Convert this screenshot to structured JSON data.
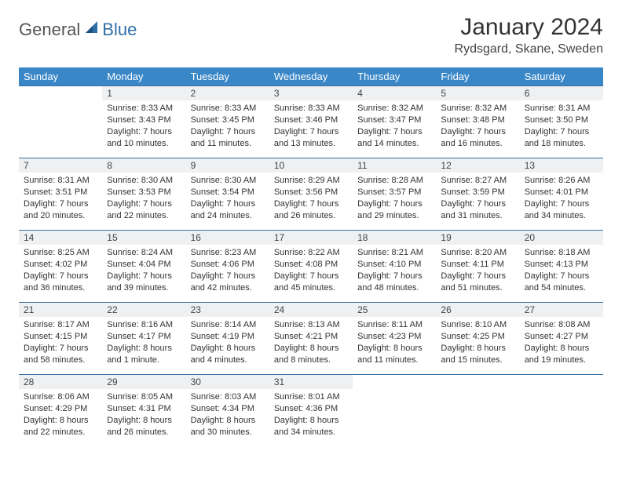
{
  "logo": {
    "general": "General",
    "blue": "Blue"
  },
  "title": "January 2024",
  "location": "Rydsgard, Skane, Sweden",
  "colors": {
    "header_bg": "#3a87c8",
    "header_text": "#ffffff",
    "daynum_bg": "#eef0f2",
    "border": "#3a6fa0",
    "logo_blue": "#2f6fa7",
    "logo_gray": "#555555",
    "body_text": "#333333"
  },
  "weekdays": [
    "Sunday",
    "Monday",
    "Tuesday",
    "Wednesday",
    "Thursday",
    "Friday",
    "Saturday"
  ],
  "weeks": [
    [
      {
        "n": "",
        "sunrise": "",
        "sunset": "",
        "daylight": ""
      },
      {
        "n": "1",
        "sunrise": "Sunrise: 8:33 AM",
        "sunset": "Sunset: 3:43 PM",
        "daylight": "Daylight: 7 hours and 10 minutes."
      },
      {
        "n": "2",
        "sunrise": "Sunrise: 8:33 AM",
        "sunset": "Sunset: 3:45 PM",
        "daylight": "Daylight: 7 hours and 11 minutes."
      },
      {
        "n": "3",
        "sunrise": "Sunrise: 8:33 AM",
        "sunset": "Sunset: 3:46 PM",
        "daylight": "Daylight: 7 hours and 13 minutes."
      },
      {
        "n": "4",
        "sunrise": "Sunrise: 8:32 AM",
        "sunset": "Sunset: 3:47 PM",
        "daylight": "Daylight: 7 hours and 14 minutes."
      },
      {
        "n": "5",
        "sunrise": "Sunrise: 8:32 AM",
        "sunset": "Sunset: 3:48 PM",
        "daylight": "Daylight: 7 hours and 16 minutes."
      },
      {
        "n": "6",
        "sunrise": "Sunrise: 8:31 AM",
        "sunset": "Sunset: 3:50 PM",
        "daylight": "Daylight: 7 hours and 18 minutes."
      }
    ],
    [
      {
        "n": "7",
        "sunrise": "Sunrise: 8:31 AM",
        "sunset": "Sunset: 3:51 PM",
        "daylight": "Daylight: 7 hours and 20 minutes."
      },
      {
        "n": "8",
        "sunrise": "Sunrise: 8:30 AM",
        "sunset": "Sunset: 3:53 PM",
        "daylight": "Daylight: 7 hours and 22 minutes."
      },
      {
        "n": "9",
        "sunrise": "Sunrise: 8:30 AM",
        "sunset": "Sunset: 3:54 PM",
        "daylight": "Daylight: 7 hours and 24 minutes."
      },
      {
        "n": "10",
        "sunrise": "Sunrise: 8:29 AM",
        "sunset": "Sunset: 3:56 PM",
        "daylight": "Daylight: 7 hours and 26 minutes."
      },
      {
        "n": "11",
        "sunrise": "Sunrise: 8:28 AM",
        "sunset": "Sunset: 3:57 PM",
        "daylight": "Daylight: 7 hours and 29 minutes."
      },
      {
        "n": "12",
        "sunrise": "Sunrise: 8:27 AM",
        "sunset": "Sunset: 3:59 PM",
        "daylight": "Daylight: 7 hours and 31 minutes."
      },
      {
        "n": "13",
        "sunrise": "Sunrise: 8:26 AM",
        "sunset": "Sunset: 4:01 PM",
        "daylight": "Daylight: 7 hours and 34 minutes."
      }
    ],
    [
      {
        "n": "14",
        "sunrise": "Sunrise: 8:25 AM",
        "sunset": "Sunset: 4:02 PM",
        "daylight": "Daylight: 7 hours and 36 minutes."
      },
      {
        "n": "15",
        "sunrise": "Sunrise: 8:24 AM",
        "sunset": "Sunset: 4:04 PM",
        "daylight": "Daylight: 7 hours and 39 minutes."
      },
      {
        "n": "16",
        "sunrise": "Sunrise: 8:23 AM",
        "sunset": "Sunset: 4:06 PM",
        "daylight": "Daylight: 7 hours and 42 minutes."
      },
      {
        "n": "17",
        "sunrise": "Sunrise: 8:22 AM",
        "sunset": "Sunset: 4:08 PM",
        "daylight": "Daylight: 7 hours and 45 minutes."
      },
      {
        "n": "18",
        "sunrise": "Sunrise: 8:21 AM",
        "sunset": "Sunset: 4:10 PM",
        "daylight": "Daylight: 7 hours and 48 minutes."
      },
      {
        "n": "19",
        "sunrise": "Sunrise: 8:20 AM",
        "sunset": "Sunset: 4:11 PM",
        "daylight": "Daylight: 7 hours and 51 minutes."
      },
      {
        "n": "20",
        "sunrise": "Sunrise: 8:18 AM",
        "sunset": "Sunset: 4:13 PM",
        "daylight": "Daylight: 7 hours and 54 minutes."
      }
    ],
    [
      {
        "n": "21",
        "sunrise": "Sunrise: 8:17 AM",
        "sunset": "Sunset: 4:15 PM",
        "daylight": "Daylight: 7 hours and 58 minutes."
      },
      {
        "n": "22",
        "sunrise": "Sunrise: 8:16 AM",
        "sunset": "Sunset: 4:17 PM",
        "daylight": "Daylight: 8 hours and 1 minute."
      },
      {
        "n": "23",
        "sunrise": "Sunrise: 8:14 AM",
        "sunset": "Sunset: 4:19 PM",
        "daylight": "Daylight: 8 hours and 4 minutes."
      },
      {
        "n": "24",
        "sunrise": "Sunrise: 8:13 AM",
        "sunset": "Sunset: 4:21 PM",
        "daylight": "Daylight: 8 hours and 8 minutes."
      },
      {
        "n": "25",
        "sunrise": "Sunrise: 8:11 AM",
        "sunset": "Sunset: 4:23 PM",
        "daylight": "Daylight: 8 hours and 11 minutes."
      },
      {
        "n": "26",
        "sunrise": "Sunrise: 8:10 AM",
        "sunset": "Sunset: 4:25 PM",
        "daylight": "Daylight: 8 hours and 15 minutes."
      },
      {
        "n": "27",
        "sunrise": "Sunrise: 8:08 AM",
        "sunset": "Sunset: 4:27 PM",
        "daylight": "Daylight: 8 hours and 19 minutes."
      }
    ],
    [
      {
        "n": "28",
        "sunrise": "Sunrise: 8:06 AM",
        "sunset": "Sunset: 4:29 PM",
        "daylight": "Daylight: 8 hours and 22 minutes."
      },
      {
        "n": "29",
        "sunrise": "Sunrise: 8:05 AM",
        "sunset": "Sunset: 4:31 PM",
        "daylight": "Daylight: 8 hours and 26 minutes."
      },
      {
        "n": "30",
        "sunrise": "Sunrise: 8:03 AM",
        "sunset": "Sunset: 4:34 PM",
        "daylight": "Daylight: 8 hours and 30 minutes."
      },
      {
        "n": "31",
        "sunrise": "Sunrise: 8:01 AM",
        "sunset": "Sunset: 4:36 PM",
        "daylight": "Daylight: 8 hours and 34 minutes."
      },
      {
        "n": "",
        "sunrise": "",
        "sunset": "",
        "daylight": ""
      },
      {
        "n": "",
        "sunrise": "",
        "sunset": "",
        "daylight": ""
      },
      {
        "n": "",
        "sunrise": "",
        "sunset": "",
        "daylight": ""
      }
    ]
  ]
}
